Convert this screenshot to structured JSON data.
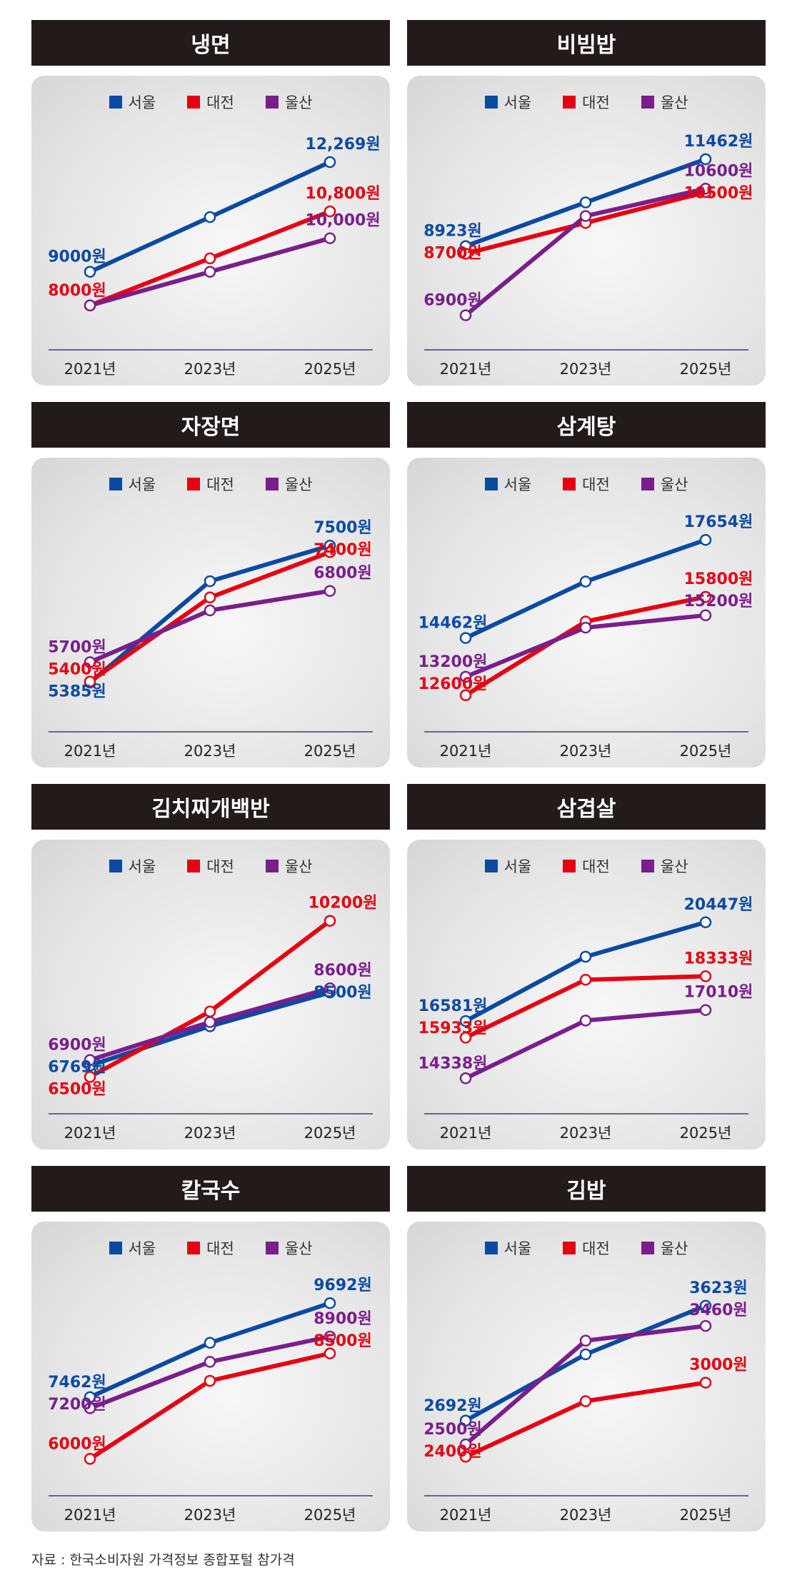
{
  "source": "자료 : 한국소비자원 가격정보 종합포털 참가격",
  "legend": [
    "서울",
    "대전",
    "울산"
  ],
  "colors": {
    "서울": "#0b4aa2",
    "대전": "#e60012",
    "울산": "#7a1e8c"
  },
  "chart_data": [
    {
      "type": "line",
      "title": "냉면",
      "categories": [
        "2021년",
        "2023년",
        "2025년"
      ],
      "ylim": [
        7400,
        12800
      ],
      "series": [
        {
          "name": "서울",
          "values": [
            9000,
            10630,
            12269
          ],
          "labels": [
            "9000원",
            "",
            "12,269원"
          ]
        },
        {
          "name": "대전",
          "values": [
            8000,
            9400,
            10800
          ],
          "labels": [
            "8000원",
            "",
            "10,800원"
          ]
        },
        {
          "name": "울산",
          "values": [
            8000,
            9000,
            10000
          ],
          "labels": [
            "",
            "",
            "10,000원"
          ]
        }
      ]
    },
    {
      "type": "line",
      "title": "비빔밥",
      "categories": [
        "2021년",
        "2023년",
        "2025년"
      ],
      "ylim": [
        6600,
        11900
      ],
      "series": [
        {
          "name": "서울",
          "values": [
            8923,
            10200,
            11462
          ],
          "labels": [
            "8923원",
            "",
            "11462원"
          ]
        },
        {
          "name": "대전",
          "values": [
            8700,
            9600,
            10500
          ],
          "labels": [
            "8700원",
            "",
            "10500원"
          ]
        },
        {
          "name": "울산",
          "values": [
            6900,
            9800,
            10600
          ],
          "labels": [
            "6900원",
            "",
            "10600원"
          ]
        }
      ]
    },
    {
      "type": "line",
      "title": "자장면",
      "categories": [
        "2021년",
        "2023년",
        "2025년"
      ],
      "ylim": [
        5000,
        7800
      ],
      "series": [
        {
          "name": "서울",
          "values": [
            5385,
            6950,
            7500
          ],
          "labels": [
            "5385원",
            "",
            "7500원"
          ]
        },
        {
          "name": "대전",
          "values": [
            5400,
            6700,
            7400
          ],
          "labels": [
            "5400원",
            "",
            "7400원"
          ]
        },
        {
          "name": "울산",
          "values": [
            5700,
            6500,
            6800
          ],
          "labels": [
            "5700원",
            "",
            "6800원"
          ]
        }
      ]
    },
    {
      "type": "line",
      "title": "삼계탕",
      "categories": [
        "2021년",
        "2023년",
        "2025년"
      ],
      "ylim": [
        12200,
        18100
      ],
      "series": [
        {
          "name": "서울",
          "values": [
            14462,
            16300,
            17654
          ],
          "labels": [
            "14462원",
            "",
            "17654원"
          ]
        },
        {
          "name": "대전",
          "values": [
            12600,
            15000,
            15800
          ],
          "labels": [
            "12600원",
            "",
            "15800원"
          ]
        },
        {
          "name": "울산",
          "values": [
            13200,
            14800,
            15200
          ],
          "labels": [
            "13200원",
            "",
            "15200원"
          ]
        }
      ]
    },
    {
      "type": "line",
      "title": "김치찌개백반",
      "categories": [
        "2021년",
        "2023년",
        "2025년"
      ],
      "ylim": [
        6200,
        10500
      ],
      "series": [
        {
          "name": "서울",
          "values": [
            6769,
            7700,
            8500
          ],
          "labels": [
            "6769원",
            "",
            "8500원"
          ]
        },
        {
          "name": "대전",
          "values": [
            6500,
            8050,
            10200
          ],
          "labels": [
            "6500원",
            "",
            "10200원"
          ]
        },
        {
          "name": "울산",
          "values": [
            6900,
            7800,
            8600
          ],
          "labels": [
            "6900원",
            "",
            "8600원"
          ]
        }
      ]
    },
    {
      "type": "line",
      "title": "삼겹살",
      "categories": [
        "2021년",
        "2023년",
        "2025년"
      ],
      "ylim": [
        13900,
        21000
      ],
      "series": [
        {
          "name": "서울",
          "values": [
            16581,
            19100,
            20447
          ],
          "labels": [
            "16581원",
            "",
            "20447원"
          ]
        },
        {
          "name": "대전",
          "values": [
            15933,
            18200,
            18333
          ],
          "labels": [
            "15933원",
            "",
            "18333원"
          ]
        },
        {
          "name": "울산",
          "values": [
            14338,
            16600,
            17010
          ],
          "labels": [
            "14338원",
            "",
            "17010원"
          ]
        }
      ]
    },
    {
      "type": "line",
      "title": "칼국수",
      "categories": [
        "2021년",
        "2023년",
        "2025년"
      ],
      "ylim": [
        5700,
        10000
      ],
      "series": [
        {
          "name": "서울",
          "values": [
            7462,
            8750,
            9692
          ],
          "labels": [
            "7462원",
            "",
            "9692원"
          ]
        },
        {
          "name": "대전",
          "values": [
            6000,
            7850,
            8500
          ],
          "labels": [
            "6000원",
            "",
            "8500원"
          ]
        },
        {
          "name": "울산",
          "values": [
            7200,
            8300,
            8900
          ],
          "labels": [
            "7200원",
            "",
            "8900원"
          ]
        }
      ]
    },
    {
      "type": "line",
      "title": "김밥",
      "categories": [
        "2021년",
        "2023년",
        "2025년"
      ],
      "ylim": [
        2280,
        3750
      ],
      "series": [
        {
          "name": "서울",
          "values": [
            2692,
            3230,
            3623
          ],
          "labels": [
            "2692원",
            "",
            "3623원"
          ]
        },
        {
          "name": "대전",
          "values": [
            2400,
            2850,
            3000
          ],
          "labels": [
            "2400원",
            "",
            "3000원"
          ]
        },
        {
          "name": "울산",
          "values": [
            2500,
            3340,
            3460
          ],
          "labels": [
            "2500원",
            "",
            "3460원"
          ]
        }
      ]
    }
  ]
}
